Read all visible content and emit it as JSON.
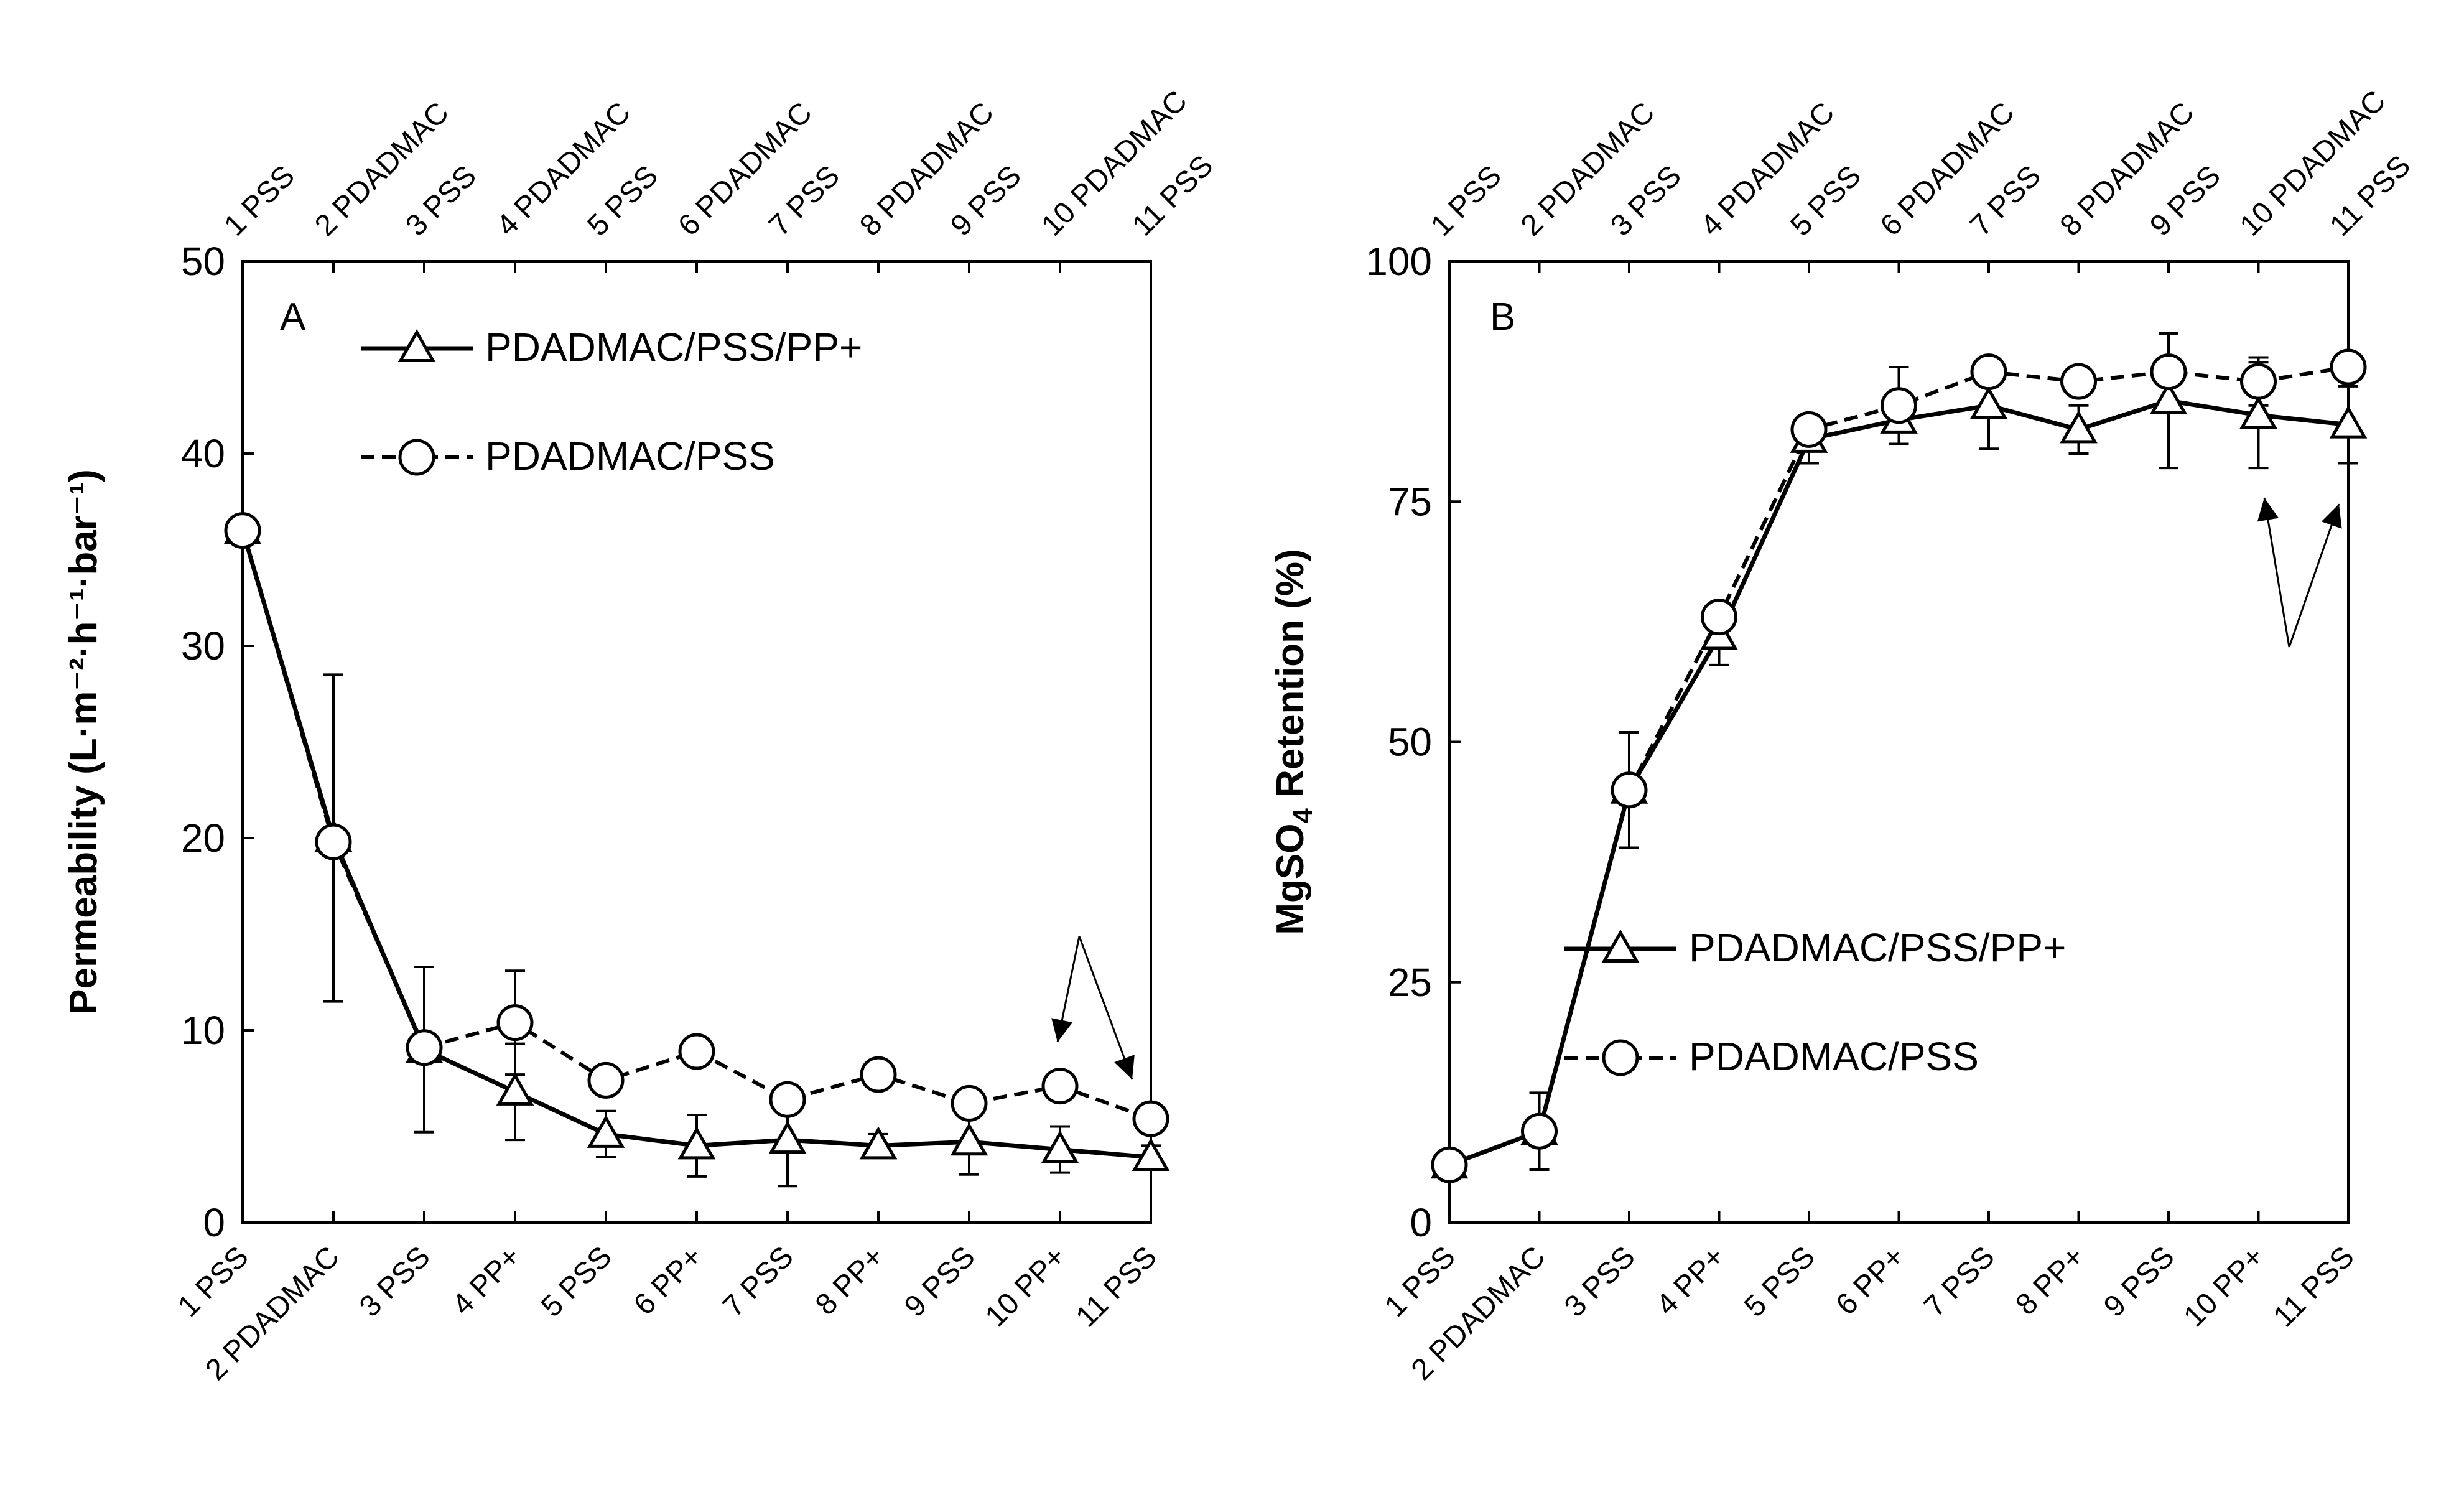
{
  "chart_data": [
    {
      "type": "line",
      "panel": "A",
      "ylabel": "Permeability (L·m⁻²·h⁻¹·bar⁻¹)",
      "xlabel": "",
      "ylim": [
        0,
        50
      ],
      "yticks": [
        0,
        10,
        20,
        30,
        40,
        50
      ],
      "grid": false,
      "categories": [
        "1 PSS",
        "2 PDADMAC",
        "3 PSS",
        "4 PP+",
        "5 PSS",
        "6 PP+",
        "7 PSS",
        "8 PP+",
        "9 PSS",
        "10 PP+",
        "11 PSS"
      ],
      "top_categories": [
        "1 PSS",
        "2 PDADMAC",
        "3 PSS",
        "4 PDADMAC",
        "5 PSS",
        "6 PDADMAC",
        "7 PSS",
        "8 PDADMAC",
        "9 PSS",
        "10 PDADMAC",
        "11 PSS"
      ],
      "legend_position": "top-right",
      "series": [
        {
          "name": "PDADMAC/PSS/PP+",
          "marker": "triangle",
          "line": "solid",
          "values": [
            36,
            20,
            9,
            6.8,
            4.6,
            4,
            4.3,
            4,
            4.2,
            3.8,
            3.4
          ],
          "errors": [
            0,
            8.5,
            4.3,
            2.5,
            1.2,
            1.6,
            2.4,
            0.6,
            1.7,
            1.2,
            0.6
          ]
        },
        {
          "name": "PDADMAC/PSS",
          "marker": "circle",
          "line": "dashed",
          "values": [
            36,
            19.8,
            9.1,
            10.4,
            7.4,
            8.9,
            6.4,
            7.7,
            6.2,
            7.1,
            5.4
          ],
          "errors": [
            0,
            0,
            0,
            2.7,
            0,
            0,
            0,
            0,
            0,
            0,
            0
          ]
        }
      ],
      "annotations": [
        {
          "type": "arrow",
          "description": "arrows pointing to points 10 and 11"
        }
      ]
    },
    {
      "type": "line",
      "panel": "B",
      "ylabel": "MgSO₄ Retention (%)",
      "ylabel_main": "MgSO",
      "ylabel_sub": "4",
      "ylabel_end": " Retention (%)",
      "xlabel": "",
      "ylim": [
        0,
        100
      ],
      "yticks": [
        0,
        25,
        50,
        75,
        100
      ],
      "grid": false,
      "categories": [
        "1 PSS",
        "2 PDADMAC",
        "3 PSS",
        "4 PP+",
        "5 PSS",
        "6 PP+",
        "7 PSS",
        "8 PP+",
        "9 PSS",
        "10 PP+",
        "11 PSS"
      ],
      "top_categories": [
        "1 PSS",
        "2 PDADMAC",
        "3 PSS",
        "4 PDADMAC",
        "5 PSS",
        "6 PDADMAC",
        "7 PSS",
        "8 PDADMAC",
        "9 PSS",
        "10 PDADMAC",
        "11 PSS"
      ],
      "legend_position": "bottom-right",
      "series": [
        {
          "name": "PDADMAC/PSS/PP+",
          "marker": "triangle",
          "line": "solid",
          "values": [
            6,
            9.5,
            45,
            61,
            81.5,
            83.5,
            85,
            82.5,
            85.5,
            84,
            83
          ],
          "errors": [
            0,
            4,
            6,
            3,
            2.5,
            2.5,
            4.5,
            2.5,
            7,
            5.5,
            4
          ]
        },
        {
          "name": "PDADMAC/PSS",
          "marker": "circle",
          "line": "dashed",
          "values": [
            6,
            9.5,
            45,
            63,
            82.5,
            85,
            88.5,
            87.5,
            88.5,
            87.5,
            89
          ],
          "errors": [
            0,
            0,
            0,
            0,
            0,
            4,
            0,
            0,
            4,
            2.5,
            0
          ]
        }
      ],
      "annotations": [
        {
          "type": "arrow",
          "description": "arrows pointing to points 10 and 11"
        }
      ]
    }
  ]
}
